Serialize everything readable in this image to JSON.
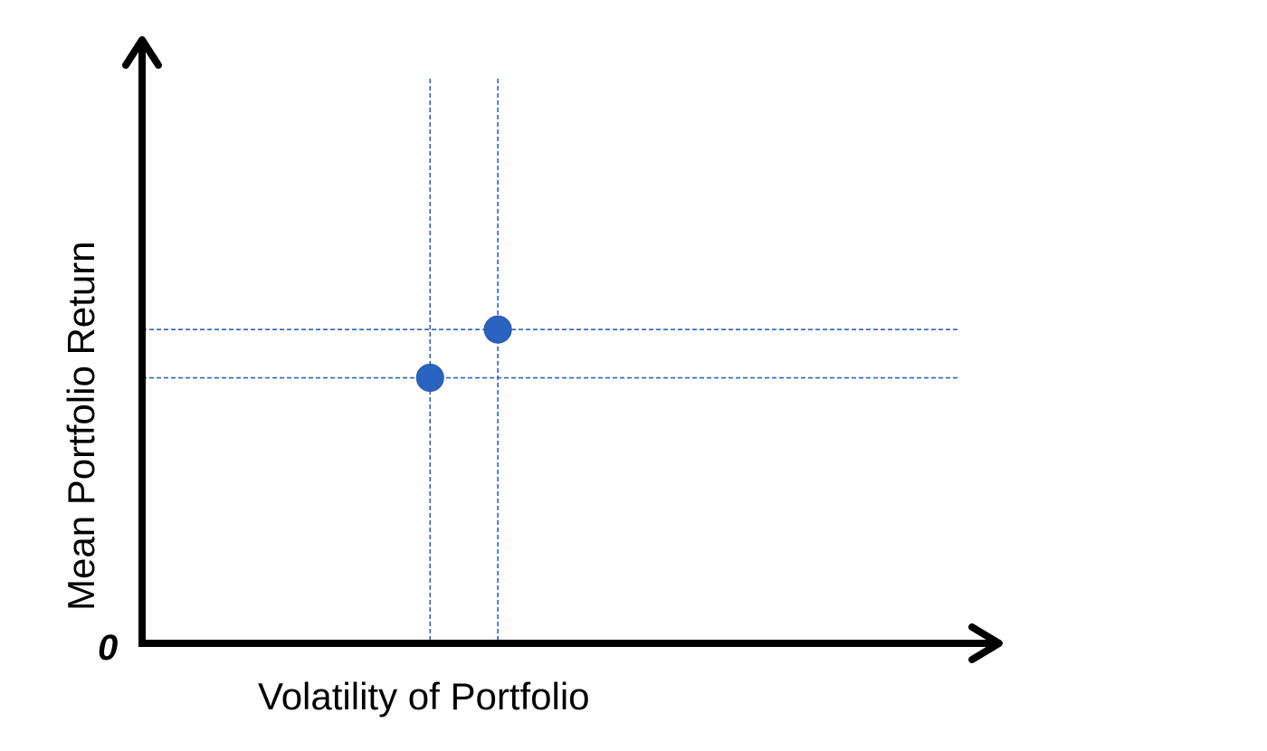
{
  "chart_data": {
    "type": "scatter",
    "title": "",
    "xlabel": "Volatility of Portfolio",
    "ylabel": "Mean Portfolio Return",
    "origin_label": "0",
    "xlim": [
      0,
      100
    ],
    "ylim": [
      0,
      100
    ],
    "grid": false,
    "show_tick_labels": false,
    "guide_lines": "dashed lines from each point to both axes",
    "colors": {
      "point": "#2b64c0",
      "guide": "#2b64c0",
      "axis": "#000000"
    },
    "series": [
      {
        "points": [
          {
            "x": 34,
            "y": 44
          },
          {
            "x": 42,
            "y": 52
          }
        ]
      }
    ]
  }
}
